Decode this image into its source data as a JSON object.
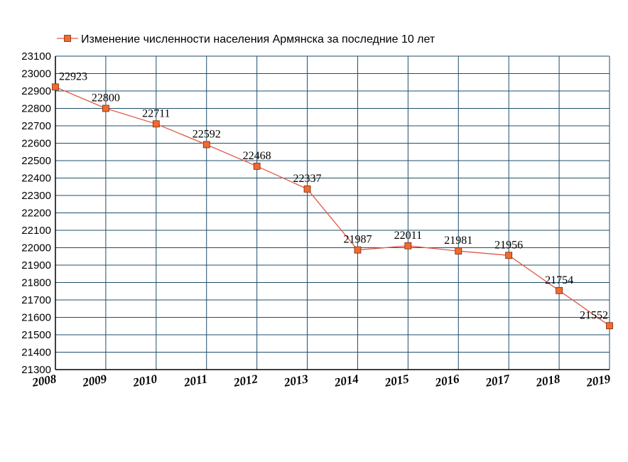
{
  "chart_data": {
    "type": "line",
    "title": "",
    "xlabel": "",
    "ylabel": "",
    "categories": [
      "2008",
      "2009",
      "2010",
      "2011",
      "2012",
      "2013",
      "2014",
      "2015",
      "2016",
      "2017",
      "2018",
      "2019"
    ],
    "series": [
      {
        "name": "Изменение численности населения Армянска за последние 10 лет",
        "values": [
          22923,
          22800,
          22711,
          22592,
          22468,
          22337,
          21987,
          22011,
          21981,
          21956,
          21754,
          21552
        ]
      }
    ],
    "data_labels": [
      "22923",
      "22800",
      "22711",
      "22592",
      "22468",
      "22337",
      "21987",
      "22011",
      "21981",
      "21956",
      "21754",
      "21552"
    ],
    "ylim": [
      21300,
      23100
    ],
    "y_ticks": [
      "21300",
      "21400",
      "21500",
      "21600",
      "21700",
      "21800",
      "21900",
      "22000",
      "22100",
      "22200",
      "22300",
      "22400",
      "22500",
      "22600",
      "22700",
      "22800",
      "22900",
      "23000",
      "23100"
    ],
    "grid": true,
    "legend_position": "top",
    "colors": {
      "line": "#e05a4b",
      "marker_fill": "#f26a2e",
      "marker_stroke": "#7a2a10",
      "grid": "#1f4e6b",
      "axis": "#000000"
    }
  }
}
